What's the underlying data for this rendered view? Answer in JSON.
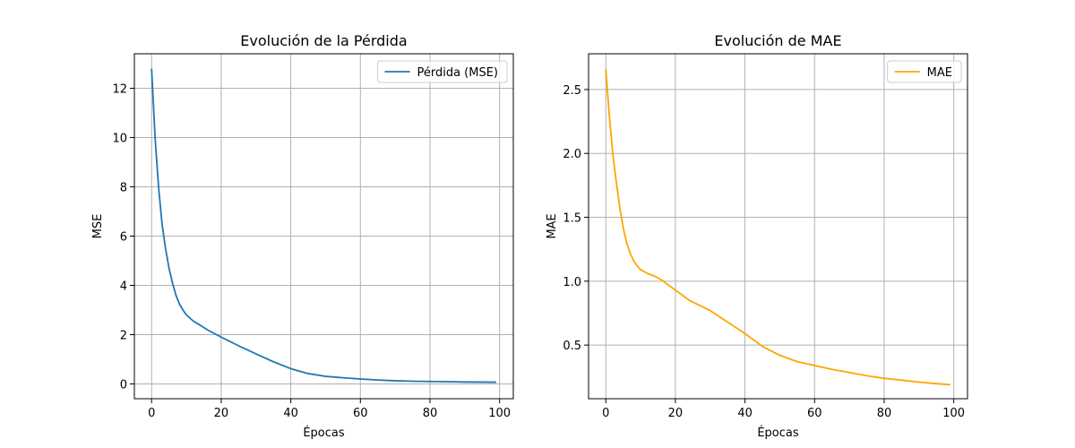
{
  "chart_data": [
    {
      "type": "line",
      "title": "Evolución de la Pérdida",
      "xlabel": "Épocas",
      "ylabel": "MSE",
      "xlim": [
        -4.95,
        103.95
      ],
      "ylim": [
        -0.6,
        13.4
      ],
      "xticks": [
        0,
        20,
        40,
        60,
        80,
        100
      ],
      "yticks": [
        0,
        2,
        4,
        6,
        8,
        10,
        12
      ],
      "grid": true,
      "legend_position": "top-right",
      "series": [
        {
          "name": "Pérdida (MSE)",
          "color": "#1f77b4",
          "x": [
            0,
            1,
            2,
            3,
            4,
            5,
            6,
            7,
            8,
            9,
            10,
            12,
            14,
            16,
            18,
            20,
            25,
            30,
            35,
            40,
            45,
            50,
            55,
            60,
            65,
            70,
            75,
            80,
            85,
            90,
            95,
            99
          ],
          "y": [
            12.8,
            10.0,
            8.0,
            6.5,
            5.5,
            4.7,
            4.1,
            3.6,
            3.25,
            3.0,
            2.8,
            2.55,
            2.38,
            2.2,
            2.05,
            1.9,
            1.55,
            1.22,
            0.9,
            0.62,
            0.42,
            0.31,
            0.25,
            0.2,
            0.16,
            0.13,
            0.11,
            0.1,
            0.09,
            0.08,
            0.075,
            0.07
          ]
        }
      ]
    },
    {
      "type": "line",
      "title": "Evolución de MAE",
      "xlabel": "Épocas",
      "ylabel": "MAE",
      "xlim": [
        -4.95,
        103.95
      ],
      "ylim": [
        0.08,
        2.78
      ],
      "xticks": [
        0,
        20,
        40,
        60,
        80,
        100
      ],
      "yticks": [
        0.5,
        1.0,
        1.5,
        2.0,
        2.5
      ],
      "ytick_labels": [
        "0.5",
        "1.0",
        "1.5",
        "2.0",
        "2.5"
      ],
      "grid": true,
      "legend_position": "top-right",
      "series": [
        {
          "name": "MAE",
          "color": "#ffa500",
          "x": [
            0,
            1,
            2,
            3,
            4,
            5,
            6,
            7,
            8,
            9,
            10,
            12,
            14,
            16,
            18,
            20,
            22,
            24,
            27,
            30,
            35,
            40,
            45,
            50,
            55,
            60,
            65,
            70,
            75,
            80,
            85,
            90,
            95,
            99
          ],
          "y": [
            2.66,
            2.3,
            2.0,
            1.78,
            1.58,
            1.42,
            1.3,
            1.22,
            1.16,
            1.12,
            1.09,
            1.06,
            1.04,
            1.01,
            0.97,
            0.93,
            0.89,
            0.85,
            0.81,
            0.77,
            0.68,
            0.59,
            0.49,
            0.42,
            0.37,
            0.34,
            0.31,
            0.285,
            0.26,
            0.24,
            0.225,
            0.21,
            0.198,
            0.19
          ]
        }
      ]
    }
  ]
}
